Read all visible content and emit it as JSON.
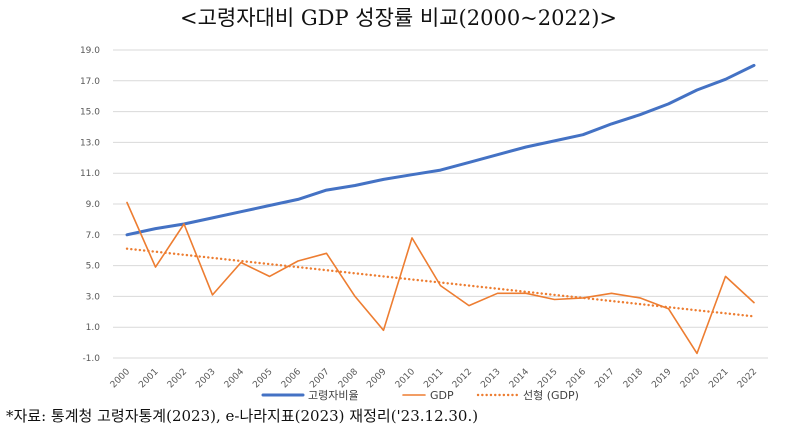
{
  "chart_data": {
    "type": "line",
    "title": "<고령자대비 GDP 성장률 비교(2000~2022)>",
    "categories": [
      "2000",
      "2001",
      "2002",
      "2003",
      "2004",
      "2005",
      "2006",
      "2007",
      "2008",
      "2009",
      "2010",
      "2011",
      "2012",
      "2013",
      "2014",
      "2015",
      "2016",
      "2017",
      "2018",
      "2019",
      "2020",
      "2021",
      "2022"
    ],
    "y_ticks": [
      "19.0",
      "17.0",
      "15.0",
      "13.0",
      "11.0",
      "9.0",
      "7.0",
      "5.0",
      "3.0",
      "1.0",
      "-1.0"
    ],
    "ylim": [
      -1.0,
      19.0
    ],
    "grid": true,
    "legend_position": "bottom",
    "series": [
      {
        "name": "고령자비율",
        "color": "#4472C4",
        "style": "solid",
        "values": [
          7.0,
          7.4,
          7.7,
          8.1,
          8.5,
          8.9,
          9.3,
          9.9,
          10.2,
          10.6,
          10.9,
          11.2,
          11.7,
          12.2,
          12.7,
          13.1,
          13.5,
          14.2,
          14.8,
          15.5,
          16.4,
          17.1,
          18.0
        ]
      },
      {
        "name": "GDP",
        "color": "#ED7D31",
        "style": "solid",
        "values": [
          9.1,
          4.9,
          7.7,
          3.1,
          5.2,
          4.3,
          5.3,
          5.8,
          3.0,
          0.8,
          6.8,
          3.7,
          2.4,
          3.2,
          3.2,
          2.8,
          2.9,
          3.2,
          2.9,
          2.2,
          -0.7,
          4.3,
          2.6
        ]
      },
      {
        "name": "선형 (GDP)",
        "color": "#ED7D31",
        "style": "dotted",
        "values": [
          6.1,
          5.9,
          5.7,
          5.5,
          5.3,
          5.1,
          4.9,
          4.7,
          4.5,
          4.3,
          4.1,
          3.9,
          3.7,
          3.5,
          3.3,
          3.1,
          2.9,
          2.7,
          2.5,
          2.3,
          2.1,
          1.9,
          1.7
        ]
      }
    ]
  },
  "source_note": "*자료: 통계청 고령자통계(2023), e-나라지표(2023) 재정리('23.12.30.)"
}
